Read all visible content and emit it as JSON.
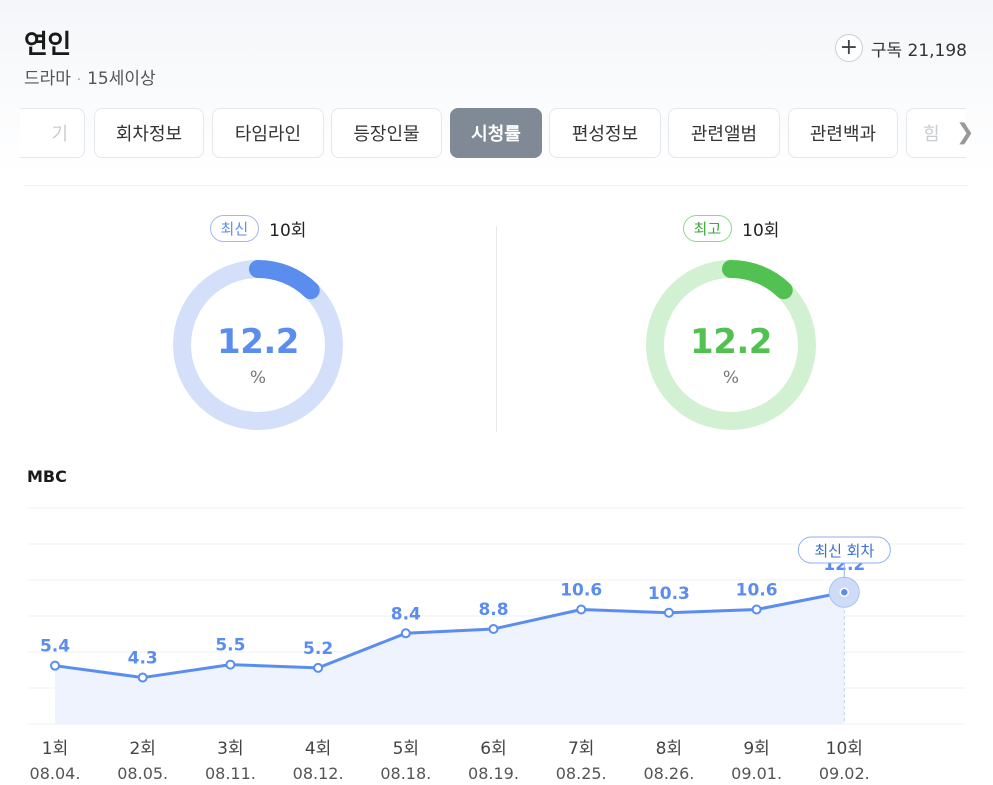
{
  "header": {
    "title": "연인",
    "genre": "드라마",
    "rating": "15세이상",
    "subscribe_label": "구독 21,198"
  },
  "tabs": [
    "기",
    "회차정보",
    "타임라인",
    "등장인물",
    "시청률",
    "편성정보",
    "관련앨범",
    "관련백과",
    "힘"
  ],
  "active_tab": "시청률",
  "latest": {
    "badge": "최신",
    "episode": "10회",
    "value": "12.2",
    "unit": "%",
    "color": "#5b8def",
    "track": "#d4e0fa",
    "fraction": 0.122
  },
  "best": {
    "badge": "최고",
    "episode": "10회",
    "value": "12.2",
    "unit": "%",
    "color": "#52c152",
    "track": "#d2f0d2",
    "fraction": 0.122
  },
  "chart_data": {
    "type": "line",
    "title": "MBC",
    "x": [
      "1회",
      "2회",
      "3회",
      "4회",
      "5회",
      "6회",
      "7회",
      "8회",
      "9회",
      "10회"
    ],
    "dates": [
      "08.04.",
      "08.05.",
      "08.11.",
      "08.12.",
      "08.18.",
      "08.19.",
      "08.25.",
      "08.26.",
      "09.01.",
      "09.02."
    ],
    "series": [
      {
        "values": [
          5.4,
          4.3,
          5.5,
          5.2,
          8.4,
          8.8,
          10.6,
          10.3,
          10.6,
          12.2
        ],
        "color": "#5b8def"
      }
    ],
    "ylim": [
      0,
      20
    ],
    "grid": true,
    "annotation": {
      "label": "최신 회차",
      "index": 9
    }
  }
}
